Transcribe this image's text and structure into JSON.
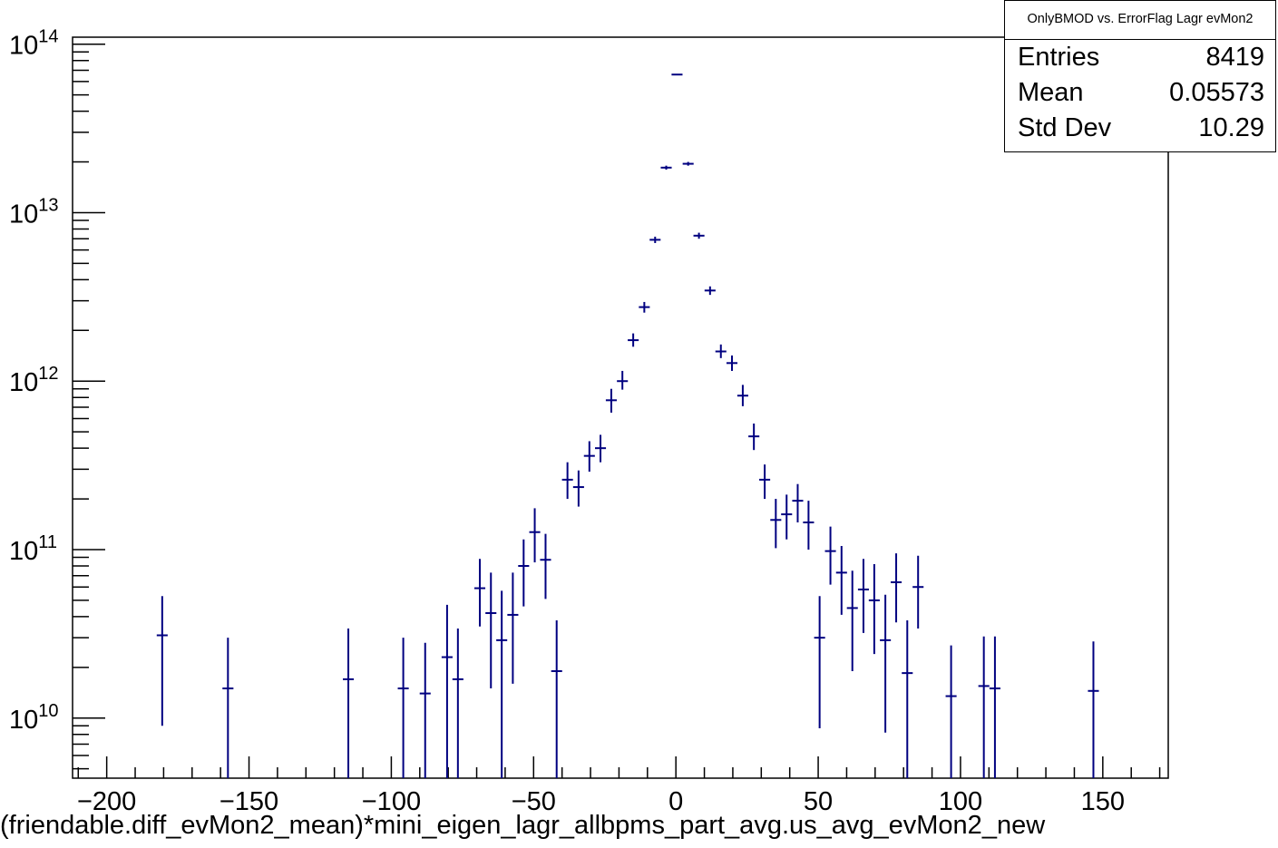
{
  "stats": {
    "title": "OnlyBMOD vs. ErrorFlag Lagr evMon2",
    "entries_label": "Entries",
    "entries_value": "8419",
    "mean_label": "Mean",
    "mean_value": "0.05573",
    "stddev_label": "Std Dev",
    "stddev_value": "10.29"
  },
  "chart_data": {
    "type": "scatter",
    "title": "",
    "xlabel": "(friendable.diff_evMon2_mean)*mini_eigen_lagr_allbpms_part_avg.us_avg_evMon2_new",
    "ylabel": "",
    "xlim": [
      -212,
      173
    ],
    "ylim": [
      4400000000.0,
      110000000000000.0
    ],
    "yscale": "log",
    "grid": false,
    "legend": "none",
    "x_ticks": [
      -200,
      -150,
      -100,
      -50,
      0,
      50,
      100,
      150
    ],
    "x_tick_labels": [
      "−200",
      "−150",
      "−100",
      "−50",
      "0",
      "50",
      "100",
      "150"
    ],
    "y_ticks": [
      {
        "base": "10",
        "exp": "10",
        "value": 10000000000.0
      },
      {
        "base": "10",
        "exp": "11",
        "value": 100000000000.0
      },
      {
        "base": "10",
        "exp": "12",
        "value": 1000000000000.0
      },
      {
        "base": "10",
        "exp": "13",
        "value": 10000000000000.0
      },
      {
        "base": "10",
        "exp": "14",
        "value": 100000000000000.0
      }
    ],
    "bin_half_width": 1.925,
    "marker_color": "#000080",
    "points": [
      {
        "x": -180.5,
        "y": 31000000000.0,
        "lo": 9000000000.0,
        "hi": 53000000000.0
      },
      {
        "x": -157.4,
        "y": 15000000000.0,
        "lo": 4400000000.0,
        "hi": 30000000000.0
      },
      {
        "x": -115.1,
        "y": 17000000000.0,
        "lo": 4400000000.0,
        "hi": 34000000000.0
      },
      {
        "x": -95.8,
        "y": 15000000000.0,
        "lo": 4400000000.0,
        "hi": 30000000000.0
      },
      {
        "x": -88.1,
        "y": 14000000000.0,
        "lo": 4400000000.0,
        "hi": 28000000000.0
      },
      {
        "x": -80.4,
        "y": 23000000000.0,
        "lo": 4400000000.0,
        "hi": 47000000000.0
      },
      {
        "x": -76.6,
        "y": 17000000000.0,
        "lo": 4400000000.0,
        "hi": 34000000000.0
      },
      {
        "x": -68.9,
        "y": 59000000000.0,
        "lo": 35000000000.0,
        "hi": 88000000000.0
      },
      {
        "x": -65.0,
        "y": 42000000000.0,
        "lo": 15000000000.0,
        "hi": 73000000000.0
      },
      {
        "x": -61.2,
        "y": 29000000000.0,
        "lo": 4400000000.0,
        "hi": 57000000000.0
      },
      {
        "x": -57.3,
        "y": 41000000000.0,
        "lo": 16000000000.0,
        "hi": 73000000000.0
      },
      {
        "x": -53.5,
        "y": 80000000000.0,
        "lo": 46000000000.0,
        "hi": 115000000000.0
      },
      {
        "x": -49.6,
        "y": 127000000000.0,
        "lo": 84000000000.0,
        "hi": 176000000000.0
      },
      {
        "x": -45.8,
        "y": 87000000000.0,
        "lo": 51000000000.0,
        "hi": 124000000000.0
      },
      {
        "x": -41.9,
        "y": 19000000000.0,
        "lo": 4400000000.0,
        "hi": 38000000000.0
      },
      {
        "x": -38.1,
        "y": 260000000000.0,
        "lo": 200000000000.0,
        "hi": 330000000000.0
      },
      {
        "x": -34.2,
        "y": 235000000000.0,
        "lo": 180000000000.0,
        "hi": 295000000000.0
      },
      {
        "x": -30.4,
        "y": 360000000000.0,
        "lo": 290000000000.0,
        "hi": 440000000000.0
      },
      {
        "x": -26.5,
        "y": 400000000000.0,
        "lo": 330000000000.0,
        "hi": 480000000000.0
      },
      {
        "x": -22.7,
        "y": 770000000000.0,
        "lo": 650000000000.0,
        "hi": 900000000000.0
      },
      {
        "x": -18.8,
        "y": 1000000000000.0,
        "lo": 890000000000.0,
        "hi": 1150000000000.0
      },
      {
        "x": -15.0,
        "y": 1750000000000.0,
        "lo": 1600000000000.0,
        "hi": 1920000000000.0
      },
      {
        "x": -11.1,
        "y": 2750000000000.0,
        "lo": 2550000000000.0,
        "hi": 2950000000000.0
      },
      {
        "x": -7.3,
        "y": 6900000000000.0,
        "lo": 6600000000000.0,
        "hi": 7200000000000.0
      },
      {
        "x": -3.4,
        "y": 18500000000000.0,
        "lo": 18000000000000.0,
        "hi": 19000000000000.0
      },
      {
        "x": 0.4,
        "y": 66000000000000.0,
        "lo": 65500000000000.0,
        "hi": 66500000000000.0
      },
      {
        "x": 4.3,
        "y": 19500000000000.0,
        "lo": 19000000000000.0,
        "hi": 20000000000000.0
      },
      {
        "x": 8.1,
        "y": 7300000000000.0,
        "lo": 7000000000000.0,
        "hi": 7600000000000.0
      },
      {
        "x": 12.0,
        "y": 3450000000000.0,
        "lo": 3250000000000.0,
        "hi": 3650000000000.0
      },
      {
        "x": 15.8,
        "y": 1500000000000.0,
        "lo": 1370000000000.0,
        "hi": 1650000000000.0
      },
      {
        "x": 19.7,
        "y": 1280000000000.0,
        "lo": 1150000000000.0,
        "hi": 1420000000000.0
      },
      {
        "x": 23.5,
        "y": 820000000000.0,
        "lo": 710000000000.0,
        "hi": 950000000000.0
      },
      {
        "x": 27.4,
        "y": 470000000000.0,
        "lo": 390000000000.0,
        "hi": 560000000000.0
      },
      {
        "x": 31.2,
        "y": 260000000000.0,
        "lo": 200000000000.0,
        "hi": 320000000000.0
      },
      {
        "x": 35.1,
        "y": 150000000000.0,
        "lo": 102000000000.0,
        "hi": 200000000000.0
      },
      {
        "x": 38.9,
        "y": 162000000000.0,
        "lo": 115000000000.0,
        "hi": 212000000000.0
      },
      {
        "x": 42.8,
        "y": 195000000000.0,
        "lo": 145000000000.0,
        "hi": 245000000000.0
      },
      {
        "x": 46.6,
        "y": 145000000000.0,
        "lo": 100000000000.0,
        "hi": 195000000000.0
      },
      {
        "x": 50.5,
        "y": 30000000000.0,
        "lo": 8700000000.0,
        "hi": 53000000000.0
      },
      {
        "x": 54.3,
        "y": 98000000000.0,
        "lo": 62000000000.0,
        "hi": 137000000000.0
      },
      {
        "x": 58.2,
        "y": 73000000000.0,
        "lo": 41000000000.0,
        "hi": 105000000000.0
      },
      {
        "x": 62.0,
        "y": 45000000000.0,
        "lo": 19000000000.0,
        "hi": 75000000000.0
      },
      {
        "x": 65.9,
        "y": 58000000000.0,
        "lo": 32000000000.0,
        "hi": 88000000000.0
      },
      {
        "x": 69.7,
        "y": 50000000000.0,
        "lo": 24000000000.0,
        "hi": 82000000000.0
      },
      {
        "x": 73.6,
        "y": 29000000000.0,
        "lo": 8200000000.0,
        "hi": 54000000000.0
      },
      {
        "x": 77.4,
        "y": 64000000000.0,
        "lo": 37000000000.0,
        "hi": 95000000000.0
      },
      {
        "x": 81.3,
        "y": 18500000000.0,
        "lo": 4400000000.0,
        "hi": 38000000000.0
      },
      {
        "x": 85.1,
        "y": 60000000000.0,
        "lo": 34000000000.0,
        "hi": 92000000000.0
      },
      {
        "x": 96.7,
        "y": 13500000000.0,
        "lo": 4400000000.0,
        "hi": 27000000000.0
      },
      {
        "x": 108.2,
        "y": 15500000000.0,
        "lo": 4400000000.0,
        "hi": 30500000000.0
      },
      {
        "x": 112.1,
        "y": 15000000000.0,
        "lo": 4400000000.0,
        "hi": 30500000000.0
      },
      {
        "x": 146.7,
        "y": 14500000000.0,
        "lo": 4400000000.0,
        "hi": 28500000000.0
      }
    ]
  }
}
